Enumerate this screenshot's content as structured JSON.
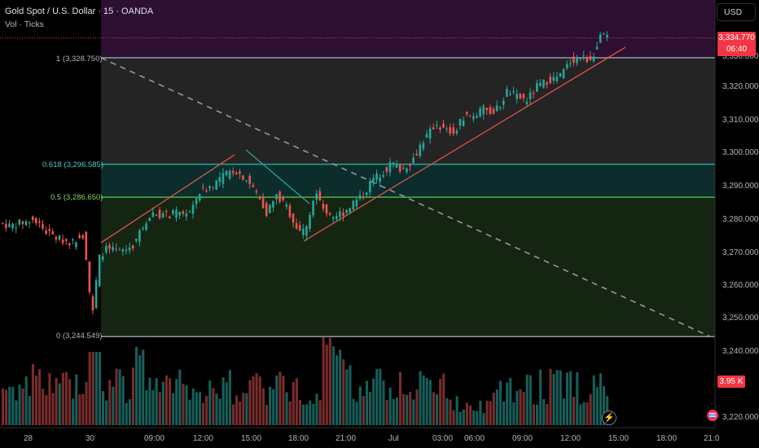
{
  "header": {
    "title": "Gold Spot / U.S. Dollar · 15 · OANDA",
    "sub": "Vol · Ticks"
  },
  "currency_button": "USD",
  "price_tag": {
    "price": "3,334.770",
    "countdown": "06:40"
  },
  "volume_tag": "3.95 K",
  "fib_labels": {
    "level_1": "1 (3,328.750)",
    "level_0618": "0.618 (3,296.585)",
    "level_05": "0.5 (3,286.650)",
    "level_0": "0 (3,244.549)"
  },
  "y_axis": {
    "ticks": [
      "3,320.000",
      "3,310.000",
      "3,300.000",
      "3,290.000",
      "3,280.000",
      "3,270.000",
      "3,260.000",
      "3,250.000",
      "3,240.000",
      "3,220.000"
    ],
    "partial_tick": "3,330.000"
  },
  "x_axis": {
    "ticks": [
      "28",
      "30",
      "09:00",
      "12:00",
      "15:00",
      "18:00",
      "21:00",
      "Jul",
      "03:00",
      "06:00",
      "09:00",
      "12:00",
      "15:00",
      "18:00",
      "21:0"
    ]
  },
  "icons": {
    "flash": "lightning-icon",
    "flag": "us-flag-icon"
  },
  "colors": {
    "up": "#26a69a",
    "down": "#ef5350",
    "accent": "#f23645"
  },
  "chart_data": {
    "type": "candlestick",
    "symbol": "Gold Spot / U.S. Dollar",
    "interval": "15",
    "price_range": [
      3220,
      3340
    ],
    "fibonacci": {
      "1": 3328.75,
      "0.618": 3296.585,
      "0.5": 3286.65,
      "0": 3244.549
    },
    "last_price": 3334.77,
    "last_volume": "3.95 K"
  }
}
